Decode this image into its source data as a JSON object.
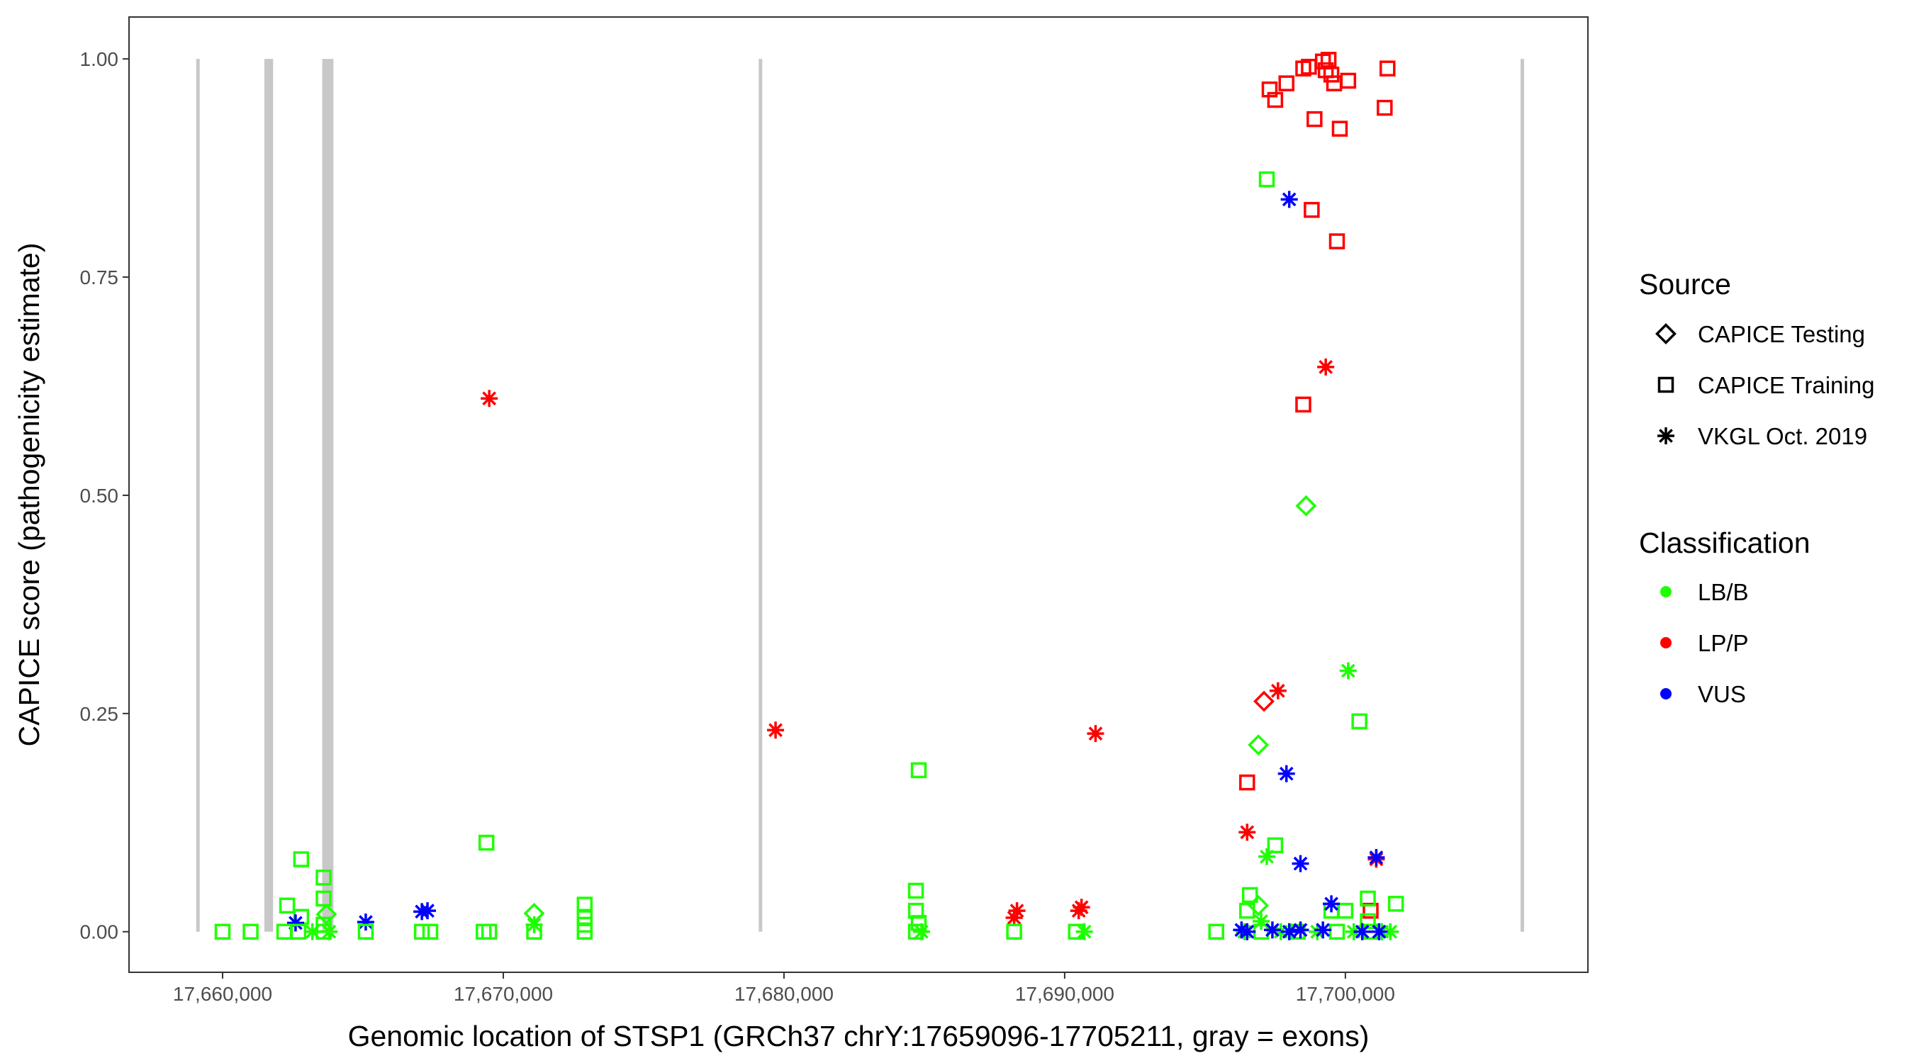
{
  "chart_data": {
    "type": "scatter",
    "xlabel": "Genomic location of STSP1 (GRCh37 chrY:17659096-17705211, gray = exons)",
    "ylabel": "CAPICE score (pathogenicity estimate)",
    "xlim": [
      17656667,
      17708640
    ],
    "ylim": [
      -0.0465,
      1.048
    ],
    "x_ticks": [
      17660000,
      17670000,
      17680000,
      17690000,
      17700000
    ],
    "x_tick_labels": [
      "17,660,000",
      "17,670,000",
      "17,680,000",
      "17,690,000",
      "17,700,000"
    ],
    "y_ticks": [
      0,
      0.25,
      0.5,
      0.75,
      1.0
    ],
    "y_tick_labels": [
      "0.00",
      "0.25",
      "0.50",
      "0.75",
      "1.00"
    ],
    "grid": false,
    "exon_color": "#c8c8c8",
    "exons": [
      [
        17659060,
        17659110
      ],
      [
        17661490,
        17661800
      ],
      [
        17663550,
        17663950
      ],
      [
        17679100,
        17679150
      ],
      [
        17706240,
        17706300
      ]
    ],
    "legend": {
      "placement": "right",
      "source": {
        "title": "Source",
        "items": [
          {
            "label": "CAPICE Testing",
            "shape": "diamond"
          },
          {
            "label": "CAPICE Training",
            "shape": "square"
          },
          {
            "label": "VKGL Oct. 2019",
            "shape": "asterisk"
          }
        ]
      },
      "classification": {
        "title": "Classification",
        "items": [
          {
            "label": "LB/B",
            "color": "#1eff00"
          },
          {
            "label": "LP/P",
            "color": "#ff0000"
          },
          {
            "label": "VUS",
            "color": "#0000ff"
          }
        ]
      }
    },
    "points_fields": [
      "x",
      "y",
      "source",
      "classification"
    ],
    "points": [
      [
        17697300,
        0.965,
        "CAPICE Training",
        "LP/P"
      ],
      [
        17697500,
        0.953,
        "CAPICE Training",
        "LP/P"
      ],
      [
        17697900,
        0.972,
        "CAPICE Training",
        "LP/P"
      ],
      [
        17698500,
        0.989,
        "CAPICE Training",
        "LP/P"
      ],
      [
        17698700,
        0.991,
        "CAPICE Training",
        "LP/P"
      ],
      [
        17699200,
        0.997,
        "CAPICE Training",
        "LP/P"
      ],
      [
        17699400,
        0.999,
        "CAPICE Training",
        "LP/P"
      ],
      [
        17699300,
        0.987,
        "CAPICE Training",
        "LP/P"
      ],
      [
        17699500,
        0.982,
        "CAPICE Training",
        "LP/P"
      ],
      [
        17699600,
        0.972,
        "CAPICE Training",
        "LP/P"
      ],
      [
        17700100,
        0.975,
        "CAPICE Training",
        "LP/P"
      ],
      [
        17701500,
        0.989,
        "CAPICE Training",
        "LP/P"
      ],
      [
        17698900,
        0.931,
        "CAPICE Training",
        "LP/P"
      ],
      [
        17699800,
        0.92,
        "CAPICE Training",
        "LP/P"
      ],
      [
        17701400,
        0.944,
        "CAPICE Training",
        "LP/P"
      ],
      [
        17698800,
        0.827,
        "CAPICE Training",
        "LP/P"
      ],
      [
        17699700,
        0.791,
        "CAPICE Training",
        "LP/P"
      ],
      [
        17698500,
        0.604,
        "CAPICE Training",
        "LP/P"
      ],
      [
        17696500,
        0.171,
        "CAPICE Training",
        "LP/P"
      ],
      [
        17700900,
        0.024,
        "CAPICE Training",
        "LP/P"
      ],
      [
        17697200,
        0.862,
        "CAPICE Training",
        "LB/B"
      ],
      [
        17698000,
        0.839,
        "VKGL Oct. 2019",
        "VUS"
      ],
      [
        17699300,
        0.647,
        "VKGL Oct. 2019",
        "LP/P"
      ],
      [
        17698600,
        0.488,
        "CAPICE Testing",
        "LB/B"
      ],
      [
        17669500,
        0.611,
        "VKGL Oct. 2019",
        "LP/P"
      ],
      [
        17679700,
        0.231,
        "VKGL Oct. 2019",
        "LP/P"
      ],
      [
        17691100,
        0.227,
        "VKGL Oct. 2019",
        "LP/P"
      ],
      [
        17700100,
        0.299,
        "VKGL Oct. 2019",
        "LB/B"
      ],
      [
        17700500,
        0.241,
        "CAPICE Training",
        "LB/B"
      ],
      [
        17697100,
        0.264,
        "CAPICE Testing",
        "LP/P"
      ],
      [
        17697600,
        0.276,
        "VKGL Oct. 2019",
        "LP/P"
      ],
      [
        17696900,
        0.214,
        "CAPICE Testing",
        "LB/B"
      ],
      [
        17697900,
        0.181,
        "VKGL Oct. 2019",
        "VUS"
      ],
      [
        17696500,
        0.114,
        "VKGL Oct. 2019",
        "LP/P"
      ],
      [
        17697500,
        0.099,
        "CAPICE Training",
        "LB/B"
      ],
      [
        17697200,
        0.086,
        "VKGL Oct. 2019",
        "LB/B"
      ],
      [
        17698400,
        0.078,
        "VKGL Oct. 2019",
        "VUS"
      ],
      [
        17701100,
        0.083,
        "VKGL Oct. 2019",
        "LP/P"
      ],
      [
        17701100,
        0.085,
        "VKGL Oct. 2019",
        "VUS"
      ],
      [
        17684800,
        0.185,
        "CAPICE Training",
        "LB/B"
      ],
      [
        17669400,
        0.102,
        "CAPICE Training",
        "LB/B"
      ],
      [
        17662800,
        0.083,
        "CAPICE Training",
        "LB/B"
      ],
      [
        17663600,
        0.062,
        "CAPICE Training",
        "LB/B"
      ],
      [
        17663600,
        0.038,
        "CAPICE Training",
        "LB/B"
      ],
      [
        17662300,
        0.03,
        "CAPICE Training",
        "LB/B"
      ],
      [
        17662800,
        0.017,
        "CAPICE Training",
        "LB/B"
      ],
      [
        17663700,
        0.02,
        "CAPICE Testing",
        "LB/B"
      ],
      [
        17663600,
        0.008,
        "CAPICE Training",
        "LB/B"
      ],
      [
        17684700,
        0.047,
        "CAPICE Training",
        "LB/B"
      ],
      [
        17684700,
        0.024,
        "CAPICE Training",
        "LB/B"
      ],
      [
        17684800,
        0.01,
        "CAPICE Training",
        "LB/B"
      ],
      [
        17672900,
        0.031,
        "CAPICE Training",
        "LB/B"
      ],
      [
        17672900,
        0.017,
        "CAPICE Training",
        "LB/B"
      ],
      [
        17672900,
        0.008,
        "CAPICE Training",
        "LB/B"
      ],
      [
        17671100,
        0.021,
        "CAPICE Testing",
        "LB/B"
      ],
      [
        17671100,
        0.008,
        "VKGL Oct. 2019",
        "LB/B"
      ],
      [
        17665100,
        0.011,
        "VKGL Oct. 2019",
        "VUS"
      ],
      [
        17662600,
        0.01,
        "VKGL Oct. 2019",
        "VUS"
      ],
      [
        17667300,
        0.024,
        "VKGL Oct. 2019",
        "VUS"
      ],
      [
        17667100,
        0.023,
        "VKGL Oct. 2019",
        "VUS"
      ],
      [
        17688300,
        0.024,
        "VKGL Oct. 2019",
        "LP/P"
      ],
      [
        17688200,
        0.016,
        "VKGL Oct. 2019",
        "LP/P"
      ],
      [
        17690600,
        0.028,
        "VKGL Oct. 2019",
        "LP/P"
      ],
      [
        17690500,
        0.024,
        "VKGL Oct. 2019",
        "LP/P"
      ],
      [
        17660000,
        0,
        "CAPICE Training",
        "LB/B"
      ],
      [
        17661000,
        0,
        "CAPICE Training",
        "LB/B"
      ],
      [
        17662200,
        0,
        "CAPICE Training",
        "LB/B"
      ],
      [
        17662700,
        0,
        "CAPICE Training",
        "LB/B"
      ],
      [
        17663200,
        0,
        "VKGL Oct. 2019",
        "LB/B"
      ],
      [
        17663600,
        0,
        "CAPICE Training",
        "LB/B"
      ],
      [
        17663800,
        0,
        "VKGL Oct. 2019",
        "LB/B"
      ],
      [
        17665100,
        0,
        "CAPICE Training",
        "LB/B"
      ],
      [
        17667100,
        0,
        "CAPICE Training",
        "LB/B"
      ],
      [
        17667400,
        0,
        "CAPICE Training",
        "LB/B"
      ],
      [
        17669300,
        0,
        "CAPICE Training",
        "LB/B"
      ],
      [
        17669500,
        0,
        "CAPICE Training",
        "LB/B"
      ],
      [
        17671100,
        0,
        "CAPICE Training",
        "LB/B"
      ],
      [
        17672900,
        0,
        "CAPICE Training",
        "LB/B"
      ],
      [
        17684700,
        0,
        "CAPICE Training",
        "LB/B"
      ],
      [
        17684900,
        0,
        "VKGL Oct. 2019",
        "LB/B"
      ],
      [
        17688200,
        0,
        "CAPICE Training",
        "LB/B"
      ],
      [
        17690400,
        0,
        "CAPICE Training",
        "LB/B"
      ],
      [
        17690700,
        0,
        "VKGL Oct. 2019",
        "LB/B"
      ],
      [
        17695400,
        0,
        "CAPICE Training",
        "LB/B"
      ],
      [
        17696600,
        0.042,
        "CAPICE Training",
        "LB/B"
      ],
      [
        17696500,
        0.024,
        "CAPICE Training",
        "LB/B"
      ],
      [
        17696900,
        0.03,
        "CAPICE Testing",
        "LB/B"
      ],
      [
        17697000,
        0.012,
        "VKGL Oct. 2019",
        "LB/B"
      ],
      [
        17699500,
        0.024,
        "CAPICE Training",
        "LB/B"
      ],
      [
        17700000,
        0.024,
        "CAPICE Training",
        "LB/B"
      ],
      [
        17700800,
        0.038,
        "CAPICE Training",
        "LB/B"
      ],
      [
        17701800,
        0.032,
        "CAPICE Training",
        "LB/B"
      ],
      [
        17700800,
        0.012,
        "CAPICE Training",
        "LB/B"
      ],
      [
        17696400,
        0,
        "VKGL Oct. 2019",
        "LB/B"
      ],
      [
        17697000,
        0,
        "CAPICE Training",
        "LB/B"
      ],
      [
        17697700,
        0,
        "VKGL Oct. 2019",
        "LB/B"
      ],
      [
        17698300,
        0,
        "CAPICE Training",
        "LB/B"
      ],
      [
        17699000,
        0,
        "VKGL Oct. 2019",
        "LB/B"
      ],
      [
        17699700,
        0,
        "CAPICE Training",
        "LB/B"
      ],
      [
        17700300,
        0,
        "VKGL Oct. 2019",
        "LB/B"
      ],
      [
        17700900,
        0,
        "CAPICE Training",
        "LB/B"
      ],
      [
        17701300,
        0,
        "VKGL Oct. 2019",
        "LB/B"
      ],
      [
        17701600,
        0,
        "VKGL Oct. 2019",
        "LB/B"
      ],
      [
        17696300,
        0.002,
        "VKGL Oct. 2019",
        "VUS"
      ],
      [
        17696500,
        0,
        "VKGL Oct. 2019",
        "VUS"
      ],
      [
        17697400,
        0.002,
        "VKGL Oct. 2019",
        "VUS"
      ],
      [
        17698000,
        0,
        "VKGL Oct. 2019",
        "VUS"
      ],
      [
        17698400,
        0.002,
        "VKGL Oct. 2019",
        "VUS"
      ],
      [
        17699200,
        0.002,
        "VKGL Oct. 2019",
        "VUS"
      ],
      [
        17699500,
        0.032,
        "VKGL Oct. 2019",
        "VUS"
      ],
      [
        17700600,
        0,
        "VKGL Oct. 2019",
        "VUS"
      ],
      [
        17701200,
        0,
        "VKGL Oct. 2019",
        "VUS"
      ]
    ]
  }
}
